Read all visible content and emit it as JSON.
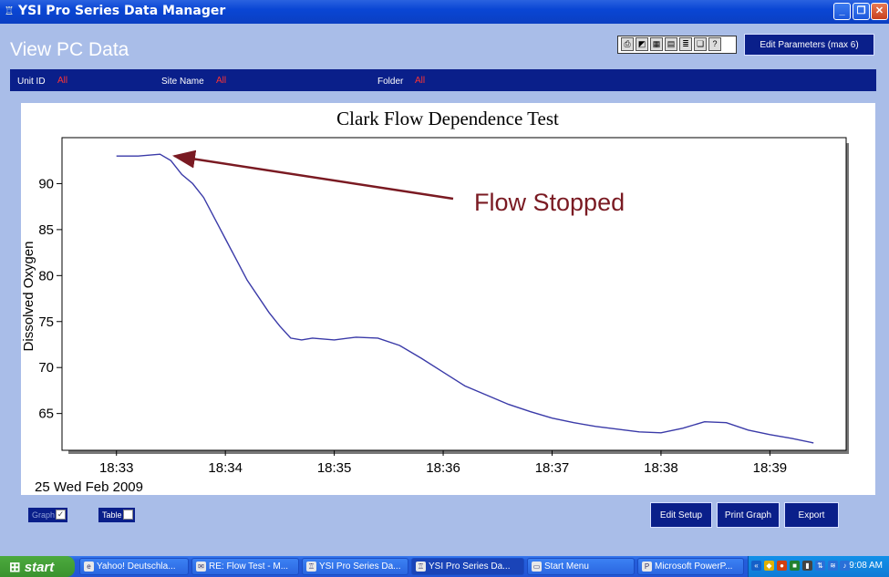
{
  "window": {
    "title": "YSI Pro Series Data Manager",
    "app_icon": "ysi-app-icon"
  },
  "header": {
    "page_title": "View PC Data",
    "toolbar_icons": [
      "print-icon",
      "chart-icon",
      "grid-icon",
      "table-icon",
      "list-icon",
      "copy-icon",
      "help-icon"
    ],
    "edit_parameters_label": "Edit Parameters (max 6)"
  },
  "filters": {
    "unit_id_label": "Unit ID",
    "unit_id_value": "All",
    "site_name_label": "Site Name",
    "site_name_value": "All",
    "folder_label": "Folder",
    "folder_value": "All"
  },
  "chart_data": {
    "type": "line",
    "title": "Clark Flow Dependence Test",
    "ylabel": "Dissolved Oxygen",
    "xlabel": "",
    "date_label": "25 Wed Feb 2009",
    "x_ticks": [
      "18:33",
      "18:34",
      "18:35",
      "18:36",
      "18:37",
      "18:38",
      "18:39"
    ],
    "y_ticks": [
      65,
      70,
      75,
      80,
      85,
      90
    ],
    "ylim": [
      61,
      95
    ],
    "xlim": [
      "18:32.5",
      "18:39.7"
    ],
    "grid": false,
    "annotation": {
      "text": "Flow Stopped",
      "color": "#7a1a22",
      "target": {
        "x": "18:33.5",
        "y": 93.2
      }
    },
    "series": [
      {
        "color": "#3a3aa8",
        "x": [
          "18:33.0",
          "18:33.2",
          "18:33.4",
          "18:33.5",
          "18:33.6",
          "18:33.7",
          "18:33.8",
          "18:34.0",
          "18:34.2",
          "18:34.4",
          "18:34.5",
          "18:34.6",
          "18:34.7",
          "18:34.8",
          "18:35.0",
          "18:35.2",
          "18:35.4",
          "18:35.6",
          "18:35.8",
          "18:36.0",
          "18:36.2",
          "18:36.4",
          "18:36.6",
          "18:36.8",
          "18:37.0",
          "18:37.2",
          "18:37.4",
          "18:37.6",
          "18:37.8",
          "18:38.0",
          "18:38.2",
          "18:38.4",
          "18:38.6",
          "18:38.8",
          "18:39.0",
          "18:39.2",
          "18:39.4"
        ],
        "y": [
          93.0,
          93.0,
          93.2,
          92.5,
          91.0,
          90.0,
          88.5,
          84.0,
          79.5,
          76.0,
          74.5,
          73.2,
          73.0,
          73.2,
          73.0,
          73.3,
          73.2,
          72.4,
          71.0,
          69.5,
          68.0,
          67.0,
          66.0,
          65.2,
          64.5,
          64.0,
          63.6,
          63.3,
          63.0,
          62.9,
          63.4,
          64.1,
          64.0,
          63.2,
          62.7,
          62.3,
          61.8
        ]
      }
    ]
  },
  "bottom": {
    "graph_label": "Graph",
    "graph_checked": true,
    "table_label": "Table",
    "table_checked": false,
    "edit_setup_label": "Edit Setup",
    "print_graph_label": "Print Graph",
    "export_label": "Export"
  },
  "taskbar": {
    "start_label": "start",
    "items": [
      {
        "label": "Yahoo! Deutschla..."
      },
      {
        "label": "RE: Flow Test - M..."
      },
      {
        "label": "YSI Pro Series Da..."
      },
      {
        "label": "YSI Pro Series Da..."
      },
      {
        "label": "Start Menu"
      },
      {
        "label": "Microsoft PowerP..."
      }
    ],
    "clock": "9:08 AM"
  }
}
